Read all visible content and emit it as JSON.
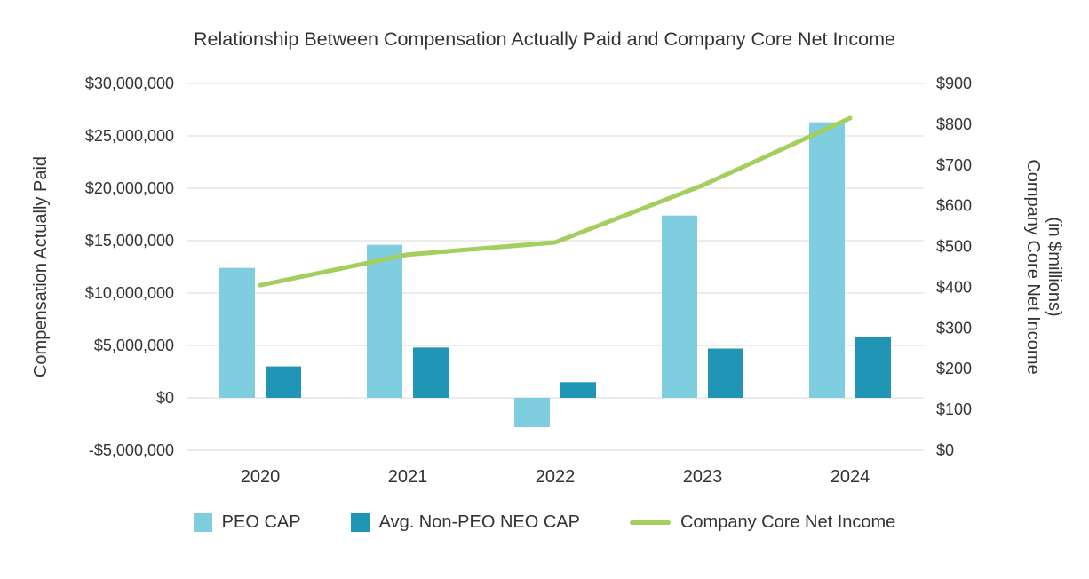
{
  "chart_data": {
    "type": "combo",
    "title": "Relationship Between Compensation Actually Paid and Company Core Net Income",
    "categories": [
      "2020",
      "2021",
      "2022",
      "2023",
      "2024"
    ],
    "left_axis": {
      "title": "Compensation Actually Paid",
      "min": -5000000,
      "max": 30000000,
      "tick_step": 5000000,
      "tick_values": [
        30000000,
        25000000,
        20000000,
        15000000,
        10000000,
        5000000,
        0,
        -5000000
      ],
      "tick_labels": [
        "$30,000,000",
        "$25,000,000",
        "$20,000,000",
        "$15,000,000",
        "$10,000,000",
        "$5,000,000",
        "$0",
        "-$5,000,000"
      ]
    },
    "right_axis": {
      "title_line1": "Company Core Net Income",
      "title_line2": "(in $millions)",
      "min": 0,
      "max": 900,
      "tick_step": 100,
      "tick_values": [
        900,
        800,
        700,
        600,
        500,
        400,
        300,
        200,
        100,
        0
      ],
      "tick_labels": [
        "$900",
        "$800",
        "$700",
        "$600",
        "$500",
        "$400",
        "$300",
        "$200",
        "$100",
        "$0"
      ]
    },
    "series": [
      {
        "name": "PEO CAP",
        "type": "bar",
        "axis": "left",
        "color": "#7FCEDF",
        "values": [
          12400000,
          14600000,
          -2800000,
          17400000,
          26300000
        ]
      },
      {
        "name": "Avg. Non-PEO NEO CAP",
        "type": "bar",
        "axis": "left",
        "color": "#2095B5",
        "values": [
          3000000,
          4800000,
          1500000,
          4700000,
          5800000
        ]
      },
      {
        "name": "Company Core Net Income",
        "type": "line",
        "axis": "right",
        "color": "#A4CE5E",
        "values": [
          405,
          480,
          510,
          650,
          815
        ]
      }
    ],
    "grid": true,
    "gridline_color": "#d9d9d9",
    "legend_position": "bottom"
  }
}
